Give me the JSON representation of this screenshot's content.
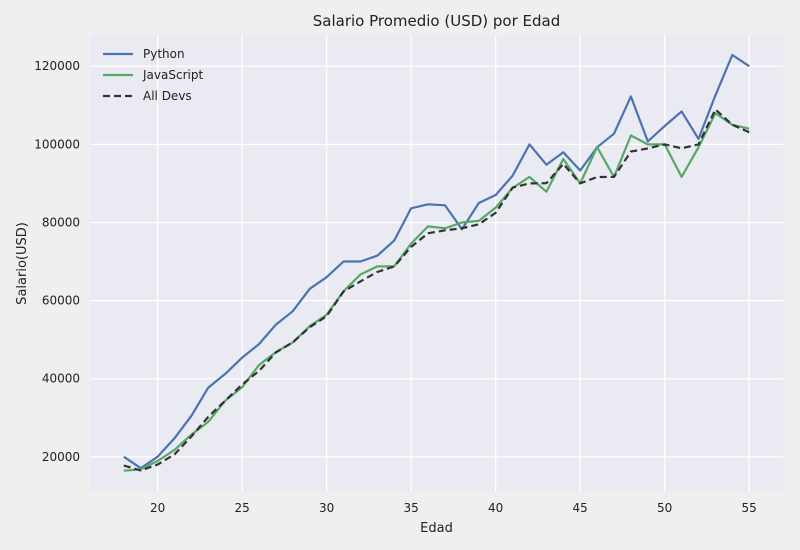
{
  "chart_data": {
    "type": "line",
    "title": "Salario Promedio (USD) por Edad",
    "xlabel": "Edad",
    "ylabel": "Salario(USD)",
    "xlim": [
      16,
      57
    ],
    "ylim": [
      11000,
      128000
    ],
    "xticks": [
      20,
      25,
      30,
      35,
      40,
      45,
      50,
      55
    ],
    "yticks": [
      20000,
      40000,
      60000,
      80000,
      100000,
      120000
    ],
    "grid": true,
    "legend_position": "top-left",
    "x": [
      18,
      19,
      20,
      21,
      22,
      23,
      24,
      25,
      26,
      27,
      28,
      29,
      30,
      31,
      32,
      33,
      34,
      35,
      36,
      37,
      38,
      39,
      40,
      41,
      42,
      43,
      44,
      45,
      46,
      47,
      48,
      49,
      50,
      51,
      52,
      53,
      54,
      55
    ],
    "series": [
      {
        "name": "Python",
        "color": "#4c72b0",
        "dash": "solid",
        "values": [
          20046,
          17100,
          20000,
          24744,
          30500,
          37732,
          41247,
          45372,
          48876,
          53850,
          57287,
          63016,
          65998,
          70003,
          70000,
          71496,
          75370,
          83640,
          84666,
          84392,
          78254,
          85000,
          87038,
          91991,
          100000,
          94796,
          97962,
          93302,
          99240,
          102736,
          112285,
          100771,
          104708,
          108423,
          101407,
          112542,
          122870,
          120000
        ]
      },
      {
        "name": "JavaScript",
        "color": "#55a868",
        "dash": "solid",
        "values": [
          16446,
          16791,
          18942,
          21780,
          25704,
          29000,
          34372,
          37810,
          43515,
          46823,
          49293,
          53437,
          56373,
          62375,
          66674,
          68745,
          68746,
          74583,
          79000,
          78508,
          79996,
          80403,
          83820,
          88833,
          91660,
          87892,
          96243,
          90000,
          99313,
          91660,
          102264,
          100000,
          100000,
          91660,
          99240,
          108000,
          105000,
          104000
        ]
      },
      {
        "name": "All Devs",
        "color": "#333333",
        "dash": "dashed",
        "values": [
          17784,
          16500,
          18012,
          20628,
          25206,
          30252,
          34368,
          38496,
          42000,
          46752,
          49320,
          53200,
          56000,
          62316,
          64928,
          67317,
          68748,
          73752,
          77232,
          78000,
          78508,
          79536,
          82488,
          88935,
          90000,
          90056,
          95000,
          90000,
          91633,
          91660,
          98150,
          98964,
          100000,
          98988,
          100000,
          108923,
          105000,
          103117
        ]
      }
    ]
  }
}
